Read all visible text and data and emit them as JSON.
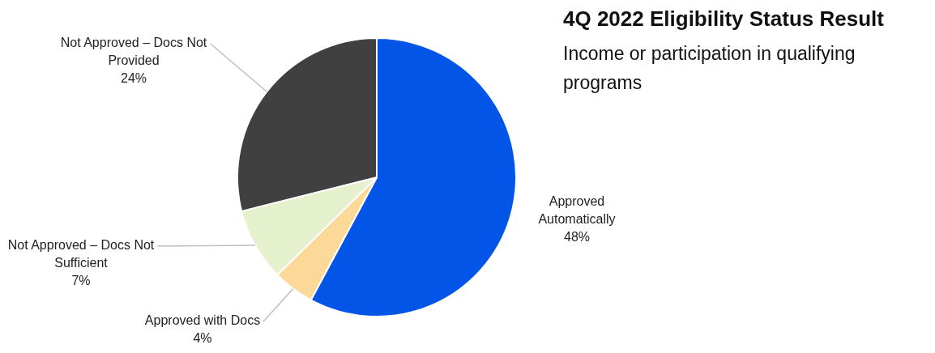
{
  "chart_data": {
    "type": "pie",
    "title": "4Q 2022 Eligibility Status Result",
    "subtitle": "Income or participation in qualifying programs",
    "categories": [
      "Approved Automatically",
      "Approved with Docs",
      "Not Approved – Docs Not Sufficient",
      "Not Approved – Docs Not Provided"
    ],
    "values": [
      48,
      4,
      7,
      24
    ],
    "colors": [
      "#0355e8",
      "#fcd998",
      "#e4f1cc",
      "#404040"
    ],
    "value_labels": [
      "48%",
      "4%",
      "7%",
      "24%"
    ],
    "legend": false
  }
}
